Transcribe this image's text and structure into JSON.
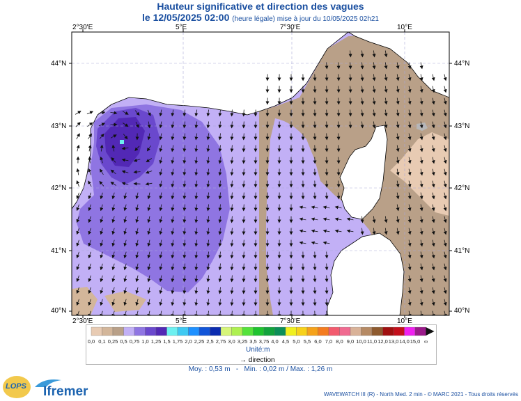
{
  "title": {
    "line1": "Hauteur significative et direction des vagues",
    "date": "le 12/05/2025 02:00",
    "note": "(heure légale) mise à jour du 10/05/2025 02h21"
  },
  "axes": {
    "lon_labels": [
      "2°30'E",
      "5°E",
      "7°30'E",
      "10°E"
    ],
    "lat_labels": [
      "44°N",
      "43°N",
      "42°N",
      "41°N",
      "40°N"
    ]
  },
  "legend": {
    "values": [
      "0,0",
      "0,1",
      "0,25",
      "0,5",
      "0,75",
      "1,0",
      "1,25",
      "1,5",
      "1,75",
      "2,0",
      "2,25",
      "2,5",
      "2,75",
      "3,0",
      "3,25",
      "3,5",
      "3,75",
      "4,0",
      "4,5",
      "5,0",
      "5,5",
      "6,0",
      "7,0",
      "8,0",
      "9,0",
      "10,0",
      "11,0",
      "12,0",
      "13,0",
      "14,0",
      "15,0",
      "∞"
    ],
    "colors": [
      "#e8cbb3",
      "#d3b69a",
      "#b9a088",
      "#c2b0f6",
      "#8f75e2",
      "#6a48cd",
      "#5228b5",
      "#6df0f0",
      "#3fc9f2",
      "#1e90ff",
      "#1255d8",
      "#0b2cb0",
      "#d6f57a",
      "#aef050",
      "#55e23b",
      "#1fc32f",
      "#12a33c",
      "#0c8f58",
      "#f0f020",
      "#f7d11a",
      "#f5a21a",
      "#f47c20",
      "#f25a6e",
      "#f06a90",
      "#d9b298",
      "#b68a64",
      "#8e5a2e",
      "#a01010",
      "#c40f1c",
      "#f020f0",
      "#9a1a8a"
    ],
    "unit": "Unité:m",
    "direction": "direction"
  },
  "stats": {
    "moy": "Moy. : 0,53 m",
    "min": "Min. : 0,02 m",
    "max": "Max. : 1,26 m"
  },
  "footer": "WAVEWATCH III (R) - North Med. 2 min - © MARC 2021 - Tous droits réservés",
  "logos": {
    "lops": "LOPS",
    "ifremer": "Ifremer"
  }
}
